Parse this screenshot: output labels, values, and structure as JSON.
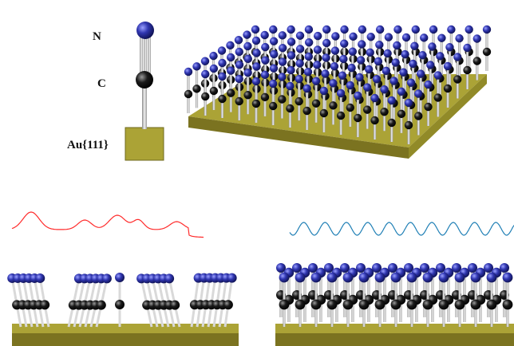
{
  "labels": {
    "nitrogen": "N",
    "carbon": "C",
    "substrate": "Au{111}"
  },
  "colors": {
    "nitrogen_atom": "#2a2f9e",
    "carbon_atom": "#0d0d0d",
    "gold_top": "#aba336",
    "gold_side": "#7b7320",
    "stick": "#e6e6e6",
    "disordered_trace": "#ff2a2a",
    "ordered_trace": "#1f7fb5"
  }
}
